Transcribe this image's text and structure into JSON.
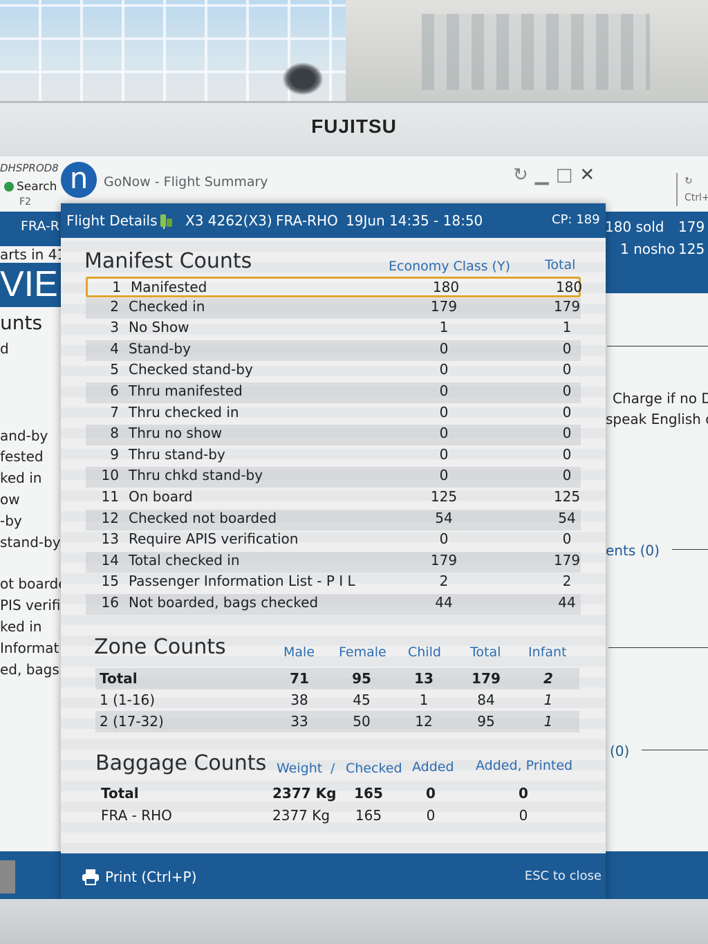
{
  "monitor": {
    "brand": "FUJITSU"
  },
  "app": {
    "title": "GoNow - Flight Summary",
    "logo_letter": "n",
    "bg_user": "DHSPROD8",
    "bg_search": "Search",
    "bg_shortcut": "F2",
    "bg_right_shortcut": "Ctrl+"
  },
  "background_left": {
    "route": "FRA-R",
    "departs": "arts in 41",
    "vie": "VIE",
    "heading": "unts",
    "lines": [
      "d",
      "",
      "and-by",
      "fested",
      "ked in",
      "ow",
      "-by",
      "stand-by",
      "",
      "ot boarde",
      "PIS verific",
      "ked in",
      "Informat",
      "ed, bags c"
    ]
  },
  "background_right": {
    "sold": "180 sold",
    "sold_val": "179",
    "nosho": "1 nosho",
    "nosho_val": "125",
    "charge_line1": "Charge if no D",
    "charge_line2": "speak English or",
    "ents": "ents (0)",
    "zero": "(0)"
  },
  "modal": {
    "header": {
      "label": "Flight Details |",
      "flight": "X3 4262(X3)",
      "route": "FRA-RHO",
      "date_time": "19Jun 14:35 - 18:50",
      "cp": "CP: 189"
    },
    "manifest": {
      "title": "Manifest Counts",
      "col_class": "Economy Class (Y)",
      "col_total": "Total",
      "rows": [
        {
          "n": "1",
          "label": "Manifested",
          "y": "180",
          "total": "180"
        },
        {
          "n": "2",
          "label": "Checked in",
          "y": "179",
          "total": "179"
        },
        {
          "n": "3",
          "label": "No Show",
          "y": "1",
          "total": "1"
        },
        {
          "n": "4",
          "label": "Stand-by",
          "y": "0",
          "total": "0"
        },
        {
          "n": "5",
          "label": "Checked stand-by",
          "y": "0",
          "total": "0"
        },
        {
          "n": "6",
          "label": "Thru manifested",
          "y": "0",
          "total": "0"
        },
        {
          "n": "7",
          "label": "Thru checked in",
          "y": "0",
          "total": "0"
        },
        {
          "n": "8",
          "label": "Thru no show",
          "y": "0",
          "total": "0"
        },
        {
          "n": "9",
          "label": "Thru stand-by",
          "y": "0",
          "total": "0"
        },
        {
          "n": "10",
          "label": "Thru chkd stand-by",
          "y": "0",
          "total": "0"
        },
        {
          "n": "11",
          "label": "On board",
          "y": "125",
          "total": "125"
        },
        {
          "n": "12",
          "label": "Checked not boarded",
          "y": "54",
          "total": "54"
        },
        {
          "n": "13",
          "label": "Require APIS verification",
          "y": "0",
          "total": "0"
        },
        {
          "n": "14",
          "label": "Total checked in",
          "y": "179",
          "total": "179"
        },
        {
          "n": "15",
          "label": "Passenger Information List - P I L",
          "y": "2",
          "total": "2"
        },
        {
          "n": "16",
          "label": "Not boarded, bags checked",
          "y": "44",
          "total": "44"
        }
      ]
    },
    "zone": {
      "title": "Zone Counts",
      "cols": [
        "Male",
        "Female",
        "Child",
        "Total",
        "Infant"
      ],
      "rows": [
        {
          "label": "Total",
          "male": "71",
          "female": "95",
          "child": "13",
          "total": "179",
          "infant": "2"
        },
        {
          "label": "1 (1-16)",
          "male": "38",
          "female": "45",
          "child": "1",
          "total": "84",
          "infant": "1"
        },
        {
          "label": "2 (17-32)",
          "male": "33",
          "female": "50",
          "child": "12",
          "total": "95",
          "infant": "1"
        }
      ]
    },
    "baggage": {
      "title": "Baggage Counts",
      "col_weight": "Weight",
      "col_sep": "/",
      "col_checked": "Checked",
      "col_added": "Added",
      "col_added_printed": "Added, Printed",
      "rows": [
        {
          "label": "Total",
          "weight": "2377 Kg",
          "checked": "165",
          "added": "0",
          "added_printed": "0"
        },
        {
          "label": "FRA - RHO",
          "weight": "2377 Kg",
          "checked": "165",
          "added": "0",
          "added_printed": "0"
        }
      ]
    },
    "footer": {
      "print": "Print (Ctrl+P)",
      "esc": "ESC to close"
    }
  },
  "colors": {
    "accent_blue": "#1b5a95",
    "column_header": "#2b6cb0",
    "selection": "#e0a52a"
  }
}
